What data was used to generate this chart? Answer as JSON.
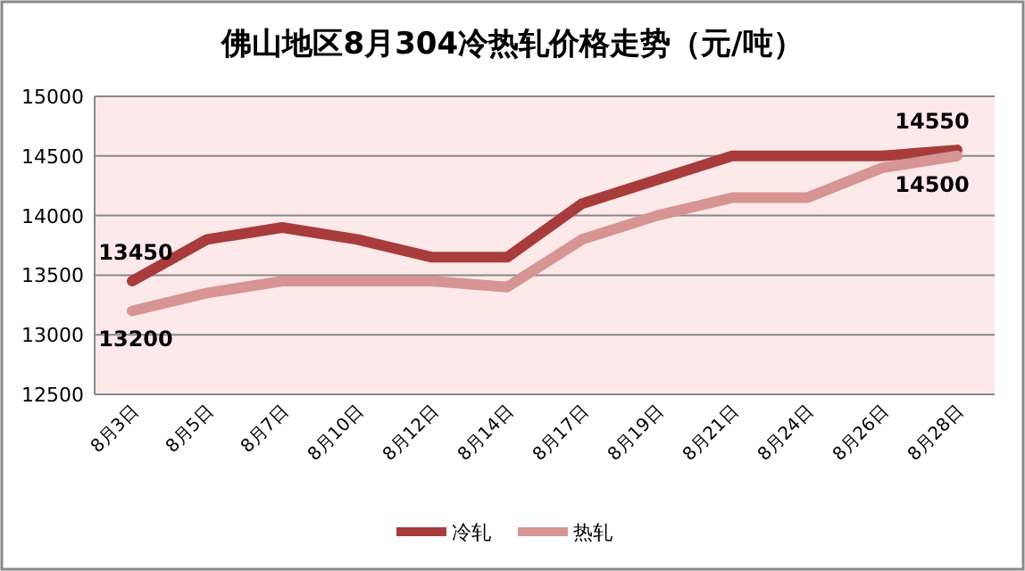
{
  "chart_data": {
    "type": "line",
    "title": "佛山地区8月304冷热轧价格走势（元/吨）",
    "categories": [
      "8月3日",
      "8月5日",
      "8月7日",
      "8月10日",
      "8月12日",
      "8月14日",
      "8月17日",
      "8月19日",
      "8月21日",
      "8月24日",
      "8月26日",
      "8月28日"
    ],
    "series": [
      {
        "name": "冷轧",
        "color": "#a83c3c",
        "values": [
          13450,
          13800,
          13900,
          13800,
          13650,
          13650,
          14100,
          14300,
          14500,
          14500,
          14500,
          14550
        ],
        "value_labels": [
          "13450",
          null,
          null,
          null,
          null,
          null,
          null,
          null,
          null,
          null,
          null,
          "14550"
        ]
      },
      {
        "name": "热轧",
        "color": "#d69593",
        "values": [
          13200,
          13350,
          13450,
          13450,
          13450,
          13400,
          13800,
          14000,
          14150,
          14150,
          14400,
          14500
        ],
        "value_labels": [
          "13200",
          null,
          null,
          null,
          null,
          null,
          null,
          null,
          null,
          null,
          null,
          "14500"
        ]
      }
    ],
    "ylim": [
      12500,
      15000
    ],
    "yticks": [
      12500,
      13000,
      13500,
      14000,
      14500,
      15000
    ],
    "grid": "y",
    "legend": "bottom",
    "marker": "none",
    "line_style": "solid"
  }
}
